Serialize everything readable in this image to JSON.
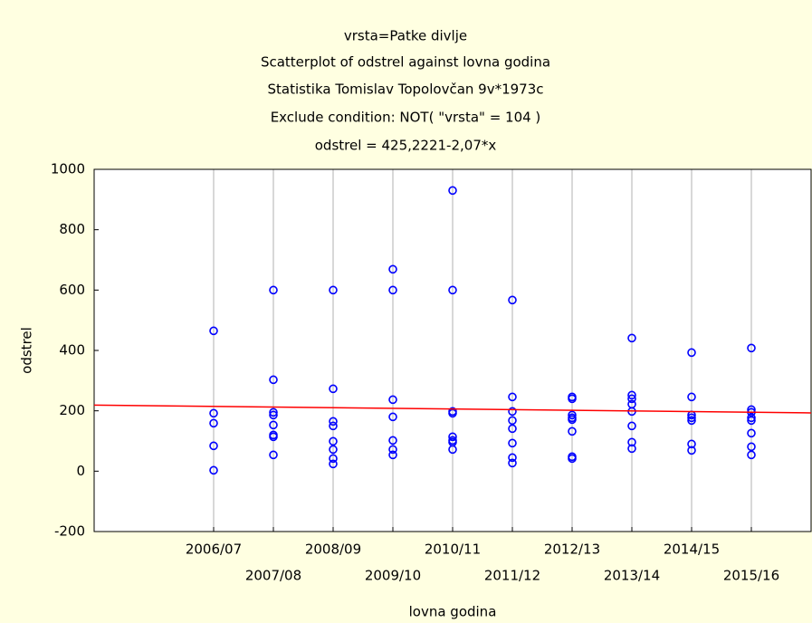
{
  "chart_data": {
    "type": "scatter",
    "title": "vrsta=Patke divlje",
    "subtitles": [
      "Scatterplot of odstrel against lovna godina",
      "Statistika Tomislav Topolovčan 9v*1973c",
      "Exclude condition: NOT( \"vrsta\" = 104 )",
      "odstrel = 425,2221-2,07*x"
    ],
    "x_label": "lovna godina",
    "y_label": "odstrel",
    "xlim": [
      2004,
      2016
    ],
    "ylim": [
      -200,
      1000
    ],
    "xticks": [
      {
        "value": 2006,
        "label": "2006/07"
      },
      {
        "value": 2007,
        "label": "2007/08"
      },
      {
        "value": 2008,
        "label": "2008/09"
      },
      {
        "value": 2009,
        "label": "2009/10"
      },
      {
        "value": 2010,
        "label": "2010/11"
      },
      {
        "value": 2011,
        "label": "2011/12"
      },
      {
        "value": 2012,
        "label": "2012/13"
      },
      {
        "value": 2013,
        "label": "2013/14"
      },
      {
        "value": 2014,
        "label": "2014/15"
      },
      {
        "value": 2015,
        "label": "2015/16"
      }
    ],
    "yticks": [
      -200,
      0,
      200,
      400,
      600,
      800,
      1000
    ],
    "grid": true,
    "series": [
      {
        "color": "#0000ff",
        "x": [
          2006,
          2006,
          2006,
          2006,
          2006,
          2007,
          2007,
          2007,
          2007,
          2007,
          2007,
          2007,
          2007,
          2008,
          2008,
          2008,
          2008,
          2008,
          2008,
          2008,
          2008,
          2009,
          2009,
          2009,
          2009,
          2009,
          2009,
          2009,
          2010,
          2010,
          2010,
          2010,
          2010,
          2010,
          2010,
          2010,
          2011,
          2011,
          2011,
          2011,
          2011,
          2011,
          2011,
          2011,
          2012,
          2012,
          2012,
          2012,
          2012,
          2012,
          2012,
          2012,
          2013,
          2013,
          2013,
          2013,
          2013,
          2013,
          2013,
          2013,
          2014,
          2014,
          2014,
          2014,
          2014,
          2014,
          2014,
          2015,
          2015,
          2015,
          2015,
          2015,
          2015,
          2015,
          2015
        ],
        "values": [
          465,
          192,
          159,
          84,
          3,
          600,
          303,
          195,
          186,
          153,
          120,
          114,
          54,
          600,
          273,
          165,
          150,
          99,
          72,
          42,
          24,
          669,
          600,
          237,
          180,
          102,
          72,
          54,
          930,
          600,
          198,
          192,
          114,
          102,
          96,
          72,
          567,
          246,
          198,
          168,
          141,
          93,
          45,
          27,
          246,
          240,
          186,
          177,
          171,
          132,
          48,
          42,
          441,
          252,
          240,
          222,
          198,
          150,
          96,
          75,
          393,
          246,
          186,
          177,
          168,
          90,
          69,
          408,
          204,
          195,
          177,
          168,
          126,
          81,
          54
        ]
      },
      {
        "color": "#ff0000",
        "kind": "line",
        "x": [
          2004,
          2016
        ],
        "values": [
          219,
          193
        ]
      }
    ]
  }
}
